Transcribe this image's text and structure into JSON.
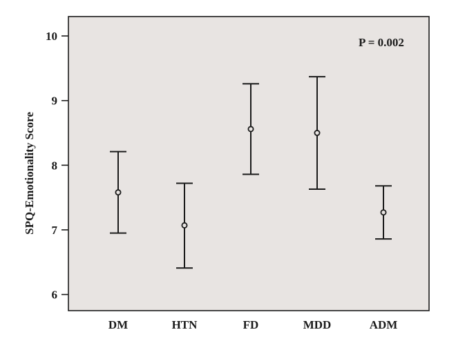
{
  "chart_data": {
    "type": "errorbar",
    "categories": [
      "DM",
      "HTN",
      "FD",
      "MDD",
      "ADM"
    ],
    "series": [
      {
        "means": [
          7.58,
          7.07,
          8.56,
          8.5,
          7.27
        ],
        "lower": [
          6.95,
          6.41,
          7.86,
          7.63,
          6.86
        ],
        "upper": [
          8.21,
          7.72,
          9.26,
          9.37,
          7.68
        ]
      }
    ],
    "xlabel": "",
    "ylabel": "SPQ-Emotionality Score",
    "yticks": [
      "6",
      "7",
      "8",
      "9",
      "10"
    ],
    "ylim": [
      5.75,
      10.3
    ],
    "annotation": "P = 0.002",
    "colors": {
      "plot_background": "#e8e4e2",
      "marks": "#1a1a1a"
    },
    "grid": false,
    "legend": "none"
  }
}
